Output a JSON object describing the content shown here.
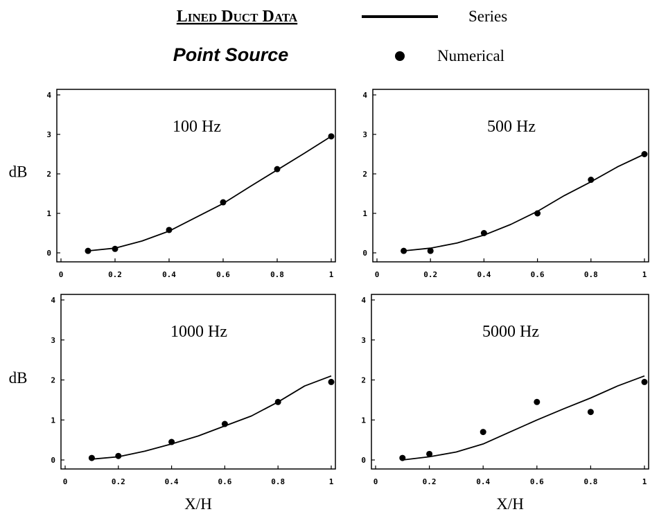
{
  "header": {
    "title": "Lined Duct Data",
    "subtitle": "Point Source",
    "legend": [
      {
        "label": "Series",
        "marker": "line"
      },
      {
        "label": "Numerical",
        "marker": "dot"
      }
    ]
  },
  "colors": {
    "ink": "#000000",
    "background": "#ffffff"
  },
  "chart_data": [
    {
      "type": "line",
      "title": "100 Hz",
      "xlabel": "",
      "ylabel": "dB",
      "xlim": [
        0,
        1
      ],
      "ylim": [
        0,
        4
      ],
      "x_ticks": [
        0,
        0.2,
        0.4,
        0.6,
        0.8,
        1
      ],
      "y_ticks": [
        0,
        1,
        2,
        3,
        4
      ],
      "grid": false,
      "series": [
        {
          "name": "Series",
          "kind": "line",
          "x": [
            0.1,
            0.2,
            0.3,
            0.4,
            0.5,
            0.6,
            0.7,
            0.8,
            0.9,
            1.0
          ],
          "y": [
            0.05,
            0.12,
            0.3,
            0.55,
            0.9,
            1.25,
            1.68,
            2.1,
            2.52,
            2.95
          ]
        },
        {
          "name": "Numerical",
          "kind": "scatter",
          "x": [
            0.1,
            0.2,
            0.4,
            0.6,
            0.8,
            1.0
          ],
          "y": [
            0.05,
            0.1,
            0.58,
            1.28,
            2.12,
            2.95
          ]
        }
      ]
    },
    {
      "type": "line",
      "title": "500 Hz",
      "xlabel": "",
      "ylabel": "",
      "xlim": [
        0,
        1
      ],
      "ylim": [
        0,
        4
      ],
      "x_ticks": [
        0,
        0.2,
        0.4,
        0.6,
        0.8,
        1
      ],
      "y_ticks": [
        0,
        1,
        2,
        3,
        4
      ],
      "grid": false,
      "series": [
        {
          "name": "Series",
          "kind": "line",
          "x": [
            0.1,
            0.2,
            0.3,
            0.4,
            0.5,
            0.6,
            0.7,
            0.8,
            0.9,
            1.0
          ],
          "y": [
            0.05,
            0.12,
            0.25,
            0.45,
            0.72,
            1.05,
            1.45,
            1.8,
            2.18,
            2.5
          ]
        },
        {
          "name": "Numerical",
          "kind": "scatter",
          "x": [
            0.1,
            0.2,
            0.4,
            0.6,
            0.8,
            1.0
          ],
          "y": [
            0.05,
            0.05,
            0.5,
            1.0,
            1.85,
            2.5
          ]
        }
      ]
    },
    {
      "type": "line",
      "title": "1000 Hz",
      "xlabel": "X/H",
      "ylabel": "dB",
      "xlim": [
        0,
        1
      ],
      "ylim": [
        0,
        4
      ],
      "x_ticks": [
        0,
        0.2,
        0.4,
        0.6,
        0.8,
        1
      ],
      "y_ticks": [
        0,
        1,
        2,
        3,
        4
      ],
      "grid": false,
      "series": [
        {
          "name": "Series",
          "kind": "line",
          "x": [
            0.1,
            0.2,
            0.3,
            0.4,
            0.5,
            0.6,
            0.7,
            0.8,
            0.9,
            1.0
          ],
          "y": [
            0.02,
            0.08,
            0.22,
            0.4,
            0.6,
            0.85,
            1.1,
            1.45,
            1.85,
            2.1
          ]
        },
        {
          "name": "Numerical",
          "kind": "scatter",
          "x": [
            0.1,
            0.2,
            0.4,
            0.6,
            0.8,
            1.0
          ],
          "y": [
            0.05,
            0.1,
            0.45,
            0.9,
            1.45,
            1.95
          ]
        }
      ]
    },
    {
      "type": "line",
      "title": "5000 Hz",
      "xlabel": "X/H",
      "ylabel": "",
      "xlim": [
        0,
        1
      ],
      "ylim": [
        0,
        4
      ],
      "x_ticks": [
        0,
        0.2,
        0.4,
        0.6,
        0.8,
        1
      ],
      "y_ticks": [
        0,
        1,
        2,
        3,
        4
      ],
      "grid": false,
      "series": [
        {
          "name": "Series",
          "kind": "line",
          "x": [
            0.1,
            0.2,
            0.3,
            0.4,
            0.5,
            0.6,
            0.7,
            0.8,
            0.9,
            1.0
          ],
          "y": [
            0.0,
            0.08,
            0.2,
            0.4,
            0.7,
            1.0,
            1.28,
            1.55,
            1.85,
            2.1
          ]
        },
        {
          "name": "Numerical",
          "kind": "scatter",
          "x": [
            0.1,
            0.2,
            0.4,
            0.6,
            0.8,
            1.0
          ],
          "y": [
            0.05,
            0.15,
            0.7,
            1.45,
            1.2,
            1.95
          ]
        }
      ]
    }
  ]
}
